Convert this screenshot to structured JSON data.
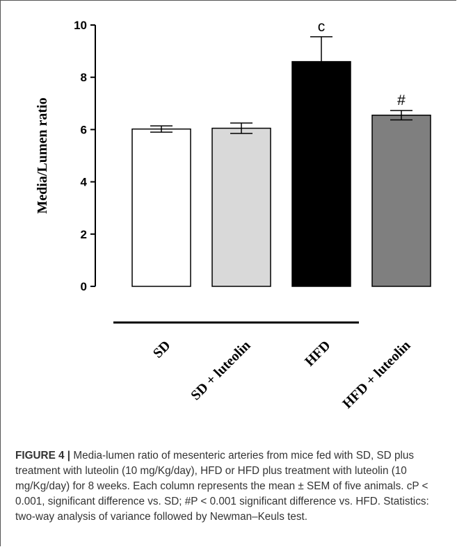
{
  "chart_data": {
    "type": "bar",
    "ylabel": "Media/Lumen ratio",
    "ylim": [
      0,
      10
    ],
    "yticks": [
      0,
      2,
      4,
      6,
      8,
      10
    ],
    "categories": [
      "SD",
      "SD + luteolin",
      "HFD",
      "HFD + luteolin"
    ],
    "values": [
      6.02,
      6.05,
      8.6,
      6.55
    ],
    "errors": [
      0.12,
      0.2,
      0.95,
      0.18
    ],
    "significance": [
      "",
      "",
      "c",
      "#"
    ],
    "bar_colors": [
      "#ffffff",
      "#d9d9d9",
      "#000000",
      "#7f7f7f"
    ]
  },
  "caption": {
    "label": "FIGURE 4 |",
    "text": "Media-lumen ratio of mesenteric arteries from mice fed with SD, SD plus treatment with luteolin (10 mg/Kg/day), HFD or HFD plus treatment with luteolin (10 mg/Kg/day) for 8 weeks. Each column represents the mean ± SEM of five animals. cP < 0.001, significant difference vs. SD; #P < 0.001 significant difference vs. HFD. Statistics: two-way analysis of variance followed by Newman–Keuls test."
  }
}
